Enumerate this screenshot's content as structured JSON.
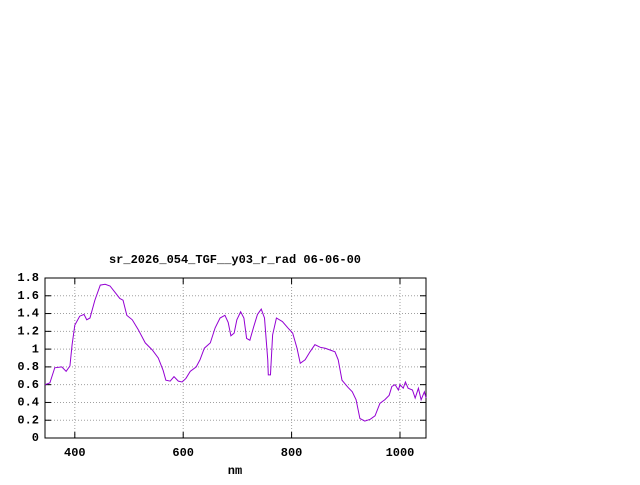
{
  "chart_data": {
    "type": "line",
    "title": "sr_2026_054_TGF__y03_r_rad 06-06-00",
    "x_label": "nm",
    "color": "#9400d3",
    "grid": true,
    "xlim": [
      345,
      1048
    ],
    "xticks": [
      400,
      600,
      800,
      1000
    ],
    "ylim": [
      0,
      1.8
    ],
    "yticks": [
      0,
      0.2,
      0.4,
      0.6,
      0.8,
      1,
      1.2,
      1.4,
      1.6,
      1.8
    ],
    "x": [
      345,
      354,
      363,
      376,
      384,
      391,
      395,
      400,
      409,
      417,
      422,
      428,
      437,
      447,
      456,
      465,
      474,
      483,
      489,
      496,
      506,
      517,
      530,
      543,
      554,
      563,
      568,
      576,
      583,
      591,
      598,
      605,
      613,
      624,
      631,
      639,
      650,
      659,
      668,
      677,
      683,
      688,
      694,
      699,
      706,
      712,
      717,
      723,
      730,
      737,
      744,
      750,
      756,
      757,
      761,
      765,
      772,
      783,
      793,
      802,
      810,
      816,
      825,
      834,
      843,
      853,
      862,
      871,
      880,
      886,
      893,
      904,
      912,
      919,
      926,
      935,
      945,
      954,
      963,
      972,
      980,
      985,
      991,
      997,
      1000,
      1006,
      1010,
      1015,
      1023,
      1028,
      1034,
      1039,
      1045,
      1048
    ],
    "values": [
      0.6,
      0.62,
      0.79,
      0.8,
      0.75,
      0.81,
      1.05,
      1.27,
      1.37,
      1.39,
      1.33,
      1.35,
      1.55,
      1.72,
      1.73,
      1.71,
      1.64,
      1.57,
      1.55,
      1.38,
      1.33,
      1.22,
      1.07,
      0.99,
      0.9,
      0.76,
      0.65,
      0.64,
      0.69,
      0.64,
      0.63,
      0.67,
      0.75,
      0.8,
      0.88,
      1.01,
      1.07,
      1.24,
      1.35,
      1.38,
      1.3,
      1.15,
      1.18,
      1.33,
      1.42,
      1.35,
      1.12,
      1.1,
      1.25,
      1.39,
      1.45,
      1.35,
      0.88,
      0.71,
      0.71,
      1.16,
      1.35,
      1.31,
      1.24,
      1.18,
      1.01,
      0.84,
      0.88,
      0.97,
      1.05,
      1.02,
      1.01,
      0.99,
      0.97,
      0.88,
      0.65,
      0.57,
      0.52,
      0.43,
      0.22,
      0.19,
      0.21,
      0.25,
      0.39,
      0.43,
      0.48,
      0.58,
      0.6,
      0.54,
      0.6,
      0.56,
      0.63,
      0.56,
      0.54,
      0.45,
      0.56,
      0.43,
      0.52,
      0.45
    ]
  }
}
